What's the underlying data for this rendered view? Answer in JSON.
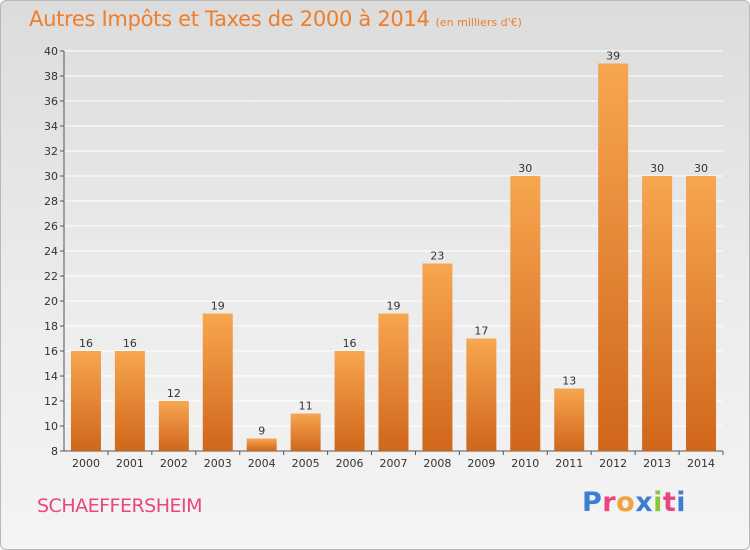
{
  "title": "Autres Impôts et Taxes de 2000 à 2014",
  "subtitle": "(en milliers d'€)",
  "commune": "SCHAEFFERSHEIM",
  "brand": {
    "letters": [
      "P",
      "r",
      "o",
      "x",
      "i",
      "t",
      "i"
    ],
    "colors": [
      "#3a7fd0",
      "#e8467c",
      "#f2a23a",
      "#3a7fd0",
      "#8cc63f",
      "#e8467c",
      "#3a7fd0"
    ]
  },
  "colors": {
    "bar_top": "#f7a650",
    "bar_bottom": "#d0661a",
    "accent": "#ef7d2a",
    "commune": "#e8467c"
  },
  "chart_data": {
    "type": "bar",
    "title": "Autres Impôts et Taxes de 2000 à 2014",
    "subtitle": "(en milliers d'€)",
    "xlabel": "",
    "ylabel": "",
    "ylim": [
      8,
      40
    ],
    "yticks": [
      8,
      10,
      12,
      14,
      16,
      18,
      20,
      22,
      24,
      26,
      28,
      30,
      32,
      34,
      36,
      38,
      40
    ],
    "grid": true,
    "categories": [
      "2000",
      "2001",
      "2002",
      "2003",
      "2004",
      "2005",
      "2006",
      "2007",
      "2008",
      "2009",
      "2010",
      "2011",
      "2012",
      "2013",
      "2014"
    ],
    "values": [
      16,
      16,
      12,
      19,
      9,
      11,
      16,
      19,
      23,
      17,
      30,
      13,
      39,
      30,
      30
    ]
  }
}
